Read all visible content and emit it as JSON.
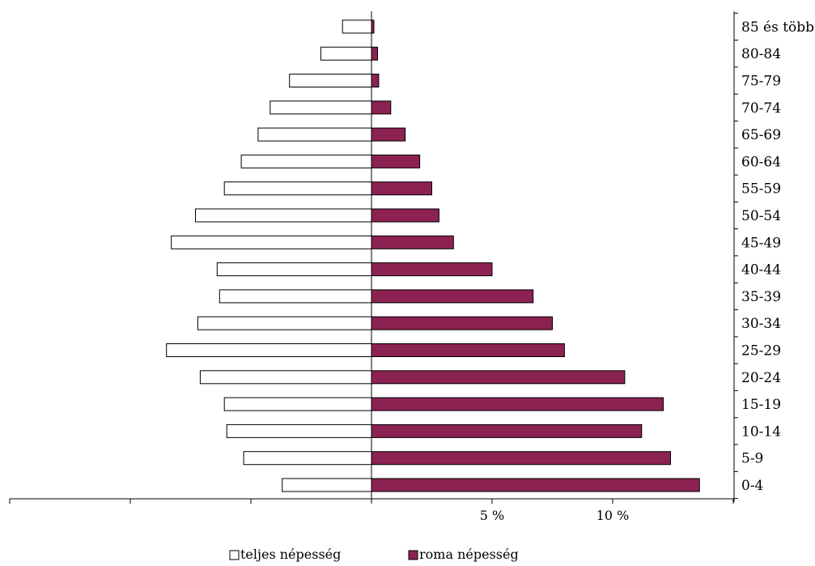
{
  "chart_data": {
    "type": "bar",
    "orientation": "horizontal",
    "layout": "population-pyramid",
    "title": "",
    "xlabel": "",
    "ylabel": "",
    "categories": [
      "0-4",
      "5-9",
      "10-14",
      "15-19",
      "20-24",
      "25-29",
      "30-34",
      "35-39",
      "40-44",
      "45-49",
      "50-54",
      "55-59",
      "60-64",
      "65-69",
      "70-74",
      "75-79",
      "80-84",
      "85 és több"
    ],
    "series": [
      {
        "name": "teljes népesség",
        "side": "left",
        "color": "#ffffff",
        "values": [
          3.7,
          5.3,
          6.0,
          6.1,
          7.1,
          8.5,
          7.2,
          6.3,
          6.4,
          8.3,
          7.3,
          6.1,
          5.4,
          4.7,
          4.2,
          3.4,
          2.1,
          1.2
        ]
      },
      {
        "name": "roma népesség",
        "side": "right",
        "color": "#8b2252",
        "values": [
          13.6,
          12.4,
          11.2,
          12.1,
          10.5,
          8.0,
          7.5,
          6.7,
          5.0,
          3.4,
          2.8,
          2.5,
          2.0,
          1.4,
          0.8,
          0.3,
          0.25,
          0.1
        ]
      }
    ],
    "xlim": [
      -15,
      15
    ],
    "tick_labels": [
      {
        "value": 5,
        "label": "5 %"
      },
      {
        "value": 10,
        "label": "10 %"
      }
    ],
    "grid": false,
    "legend_position": "bottom"
  }
}
